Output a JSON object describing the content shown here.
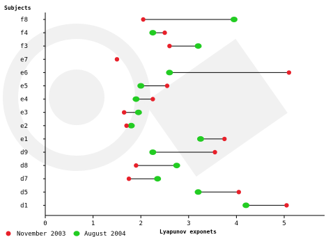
{
  "chart_data": {
    "type": "dumbbell",
    "ylabel": "Subjects",
    "xlabel": "Lyapunov exponets",
    "xlim": [
      0,
      5.9
    ],
    "xticks": [
      0,
      1,
      2,
      3,
      4,
      5
    ],
    "subjects": [
      "f8",
      "f4",
      "f3",
      "e7",
      "e6",
      "e5",
      "e4",
      "e3",
      "e2",
      "e1",
      "d9",
      "d8",
      "d7",
      "d5",
      "d1"
    ],
    "series": [
      {
        "name": "November 2003",
        "color": "#e8202a",
        "values": [
          2.05,
          2.5,
          2.6,
          1.5,
          5.1,
          2.55,
          2.25,
          1.65,
          1.7,
          3.75,
          3.55,
          1.9,
          1.75,
          4.05,
          5.05
        ]
      },
      {
        "name": "August 2004",
        "color": "#22cc22",
        "values": [
          3.95,
          2.25,
          3.2,
          null,
          2.6,
          2.0,
          1.9,
          1.95,
          1.8,
          3.25,
          2.25,
          2.75,
          2.35,
          3.2,
          4.2
        ]
      }
    ],
    "legend_position": "bottom-left",
    "grid": false
  }
}
